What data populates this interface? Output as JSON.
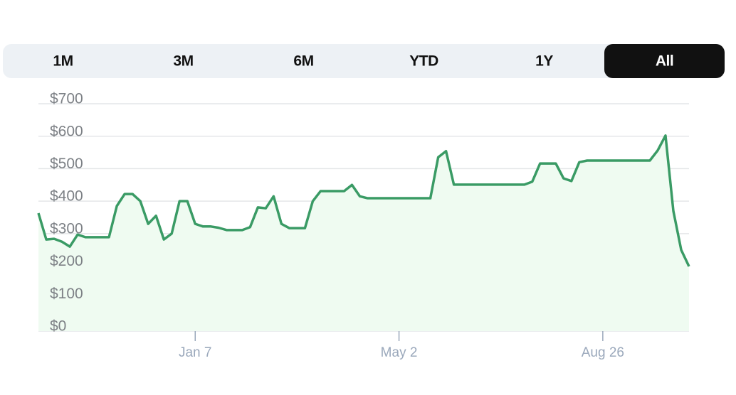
{
  "tabs": [
    {
      "label": "1M",
      "selected": false
    },
    {
      "label": "3M",
      "selected": false
    },
    {
      "label": "6M",
      "selected": false
    },
    {
      "label": "YTD",
      "selected": false
    },
    {
      "label": "1Y",
      "selected": false
    },
    {
      "label": "All",
      "selected": true
    }
  ],
  "chart_data": {
    "type": "area",
    "categories": [
      null,
      null,
      null,
      null,
      null,
      null,
      null,
      null,
      null,
      null,
      null,
      null,
      null,
      null,
      null,
      null,
      null,
      null,
      null,
      null,
      "Jan 7",
      null,
      null,
      null,
      null,
      null,
      null,
      null,
      null,
      null,
      null,
      null,
      null,
      null,
      null,
      null,
      null,
      null,
      null,
      null,
      null,
      null,
      null,
      null,
      null,
      null,
      "May 2",
      null,
      null,
      null,
      null,
      null,
      null,
      null,
      null,
      null,
      null,
      null,
      null,
      null,
      null,
      null,
      null,
      null,
      null,
      null,
      null,
      null,
      null,
      null,
      null,
      null,
      "Aug 26",
      null,
      null,
      null,
      null,
      null,
      null,
      null,
      null,
      null,
      null,
      null
    ],
    "series": [
      {
        "color": "#3a9b65",
        "fill": "#effbf1",
        "values": [
          363,
          282,
          284,
          275,
          260,
          297,
          289,
          289,
          289,
          289,
          385,
          422,
          422,
          400,
          330,
          355,
          282,
          300,
          400,
          400,
          330,
          322,
          322,
          318,
          311,
          311,
          311,
          320,
          381,
          378,
          415,
          330,
          317,
          317,
          317,
          400,
          431,
          431,
          431,
          431,
          450,
          415,
          409,
          409,
          409,
          409,
          409,
          409,
          409,
          409,
          409,
          535,
          554,
          451,
          451,
          451,
          451,
          451,
          451,
          451,
          451,
          451,
          451,
          460,
          516,
          516,
          516,
          470,
          462,
          520,
          525,
          525,
          525,
          525,
          525,
          525,
          525,
          525,
          525,
          556,
          602,
          370,
          250,
          199
        ]
      }
    ],
    "ylim": [
      0,
      700
    ],
    "yticks": [
      {
        "value": 0,
        "label": "$0"
      },
      {
        "value": 100,
        "label": "$100"
      },
      {
        "value": 200,
        "label": "$200"
      },
      {
        "value": 300,
        "label": "$300"
      },
      {
        "value": 400,
        "label": "$400"
      },
      {
        "value": 500,
        "label": "$500"
      },
      {
        "value": 600,
        "label": "$600"
      },
      {
        "value": 700,
        "label": "$700"
      }
    ],
    "grid": true
  }
}
